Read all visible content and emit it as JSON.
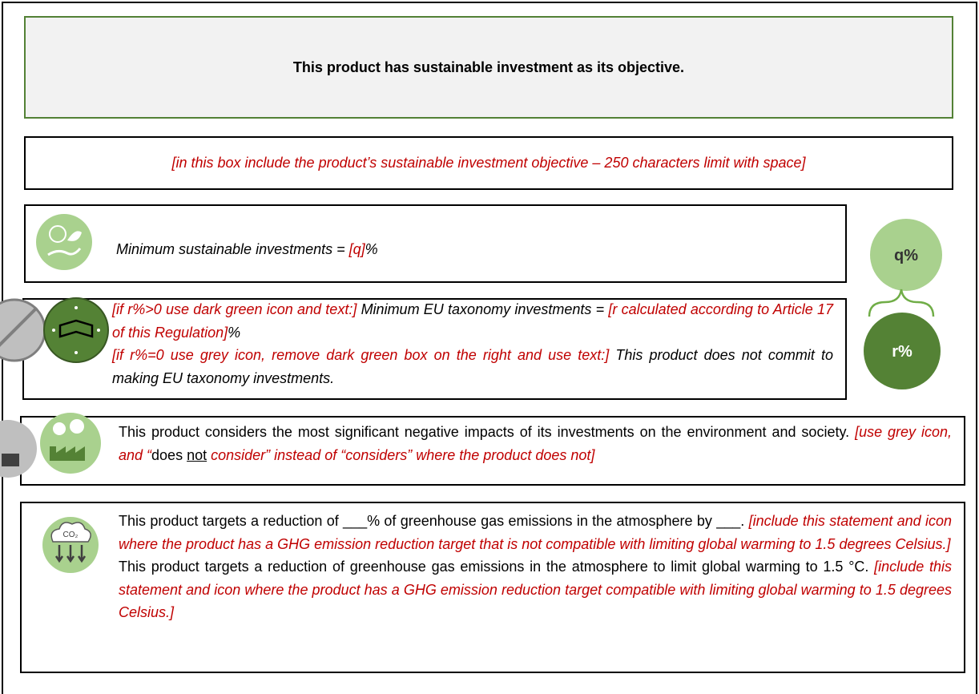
{
  "header": {
    "title": "This product has sustainable investment as its objective."
  },
  "objective": {
    "text": "[in this box include the product’s sustainable investment objective – 250 characters limit with space]"
  },
  "minimum_sustainable": {
    "parts": [
      "Minimum sustainable investments = ",
      "[q]",
      "%"
    ]
  },
  "badges": {
    "q": "q%",
    "r": "r%"
  },
  "taxonomy": {
    "first": [
      "[if r%>0 use dark green icon and text:]",
      " Minimum EU taxonomy investments = ",
      "[r calculated according to Article 17 of this Regulation]",
      "%"
    ],
    "second": [
      "[if r%=0 use grey icon, remove dark green box on the right and use text:]",
      " This product does not commit to making EU taxonomy investments."
    ]
  },
  "adverse_impacts": {
    "parts": [
      "This product considers the most significant negative impacts of its investments on the environment and society. ",
      "[use grey icon, and “",
      "does",
      " ",
      "not",
      " consider” instead of “considers” where the product does not]"
    ]
  },
  "ghg": {
    "icon_label": "CO₂",
    "first": [
      "This product targets a reduction of ___% of greenhouse gas emissions in the atmosphere by ___.",
      "[include this statement and icon where the product has a GHG emission reduction target that is not compatible with limiting global warming to 1.5 degrees Celsius.]"
    ],
    "second": [
      "This product targets a reduction of greenhouse gas emissions in the atmosphere to limit global warming to 1.5 °C. ",
      "[include this statement and icon where the product has a GHG emission reduction target compatible with limiting global warming to 1.5 degrees Celsius.]"
    ]
  }
}
